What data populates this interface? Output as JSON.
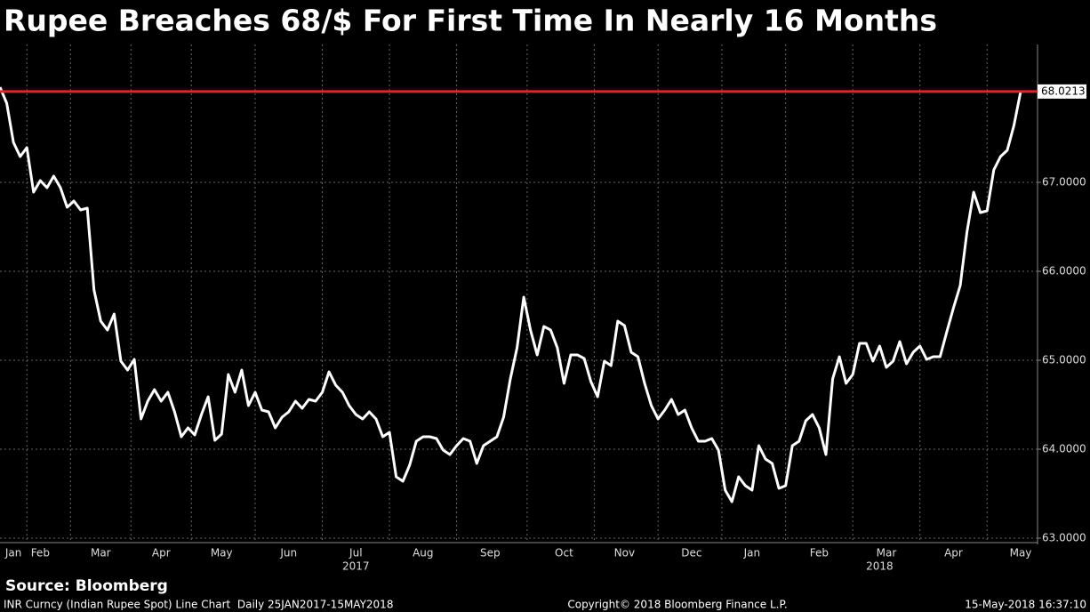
{
  "chart_data": {
    "type": "line",
    "title": "Rupee Breaches 68/$ For First Time In Nearly 16 Months",
    "source": "Source: Bloomberg",
    "footer_left": "INR Curncy (Indian Rupee Spot) Line Chart  Daily 25JAN2017-15MAY2018",
    "footer_center": "Copyright© 2018 Bloomberg Finance L.P.",
    "footer_right": "15-May-2018 16:37:10",
    "color": "#ffffff",
    "reference_line_color": "#e8202a",
    "grid": true,
    "ylim": [
      62.95,
      68.55
    ],
    "yticks": [
      {
        "value": 63,
        "label": "63.0000"
      },
      {
        "value": 64,
        "label": "64.0000"
      },
      {
        "value": 65,
        "label": "65.0000"
      },
      {
        "value": 66,
        "label": "66.0000"
      },
      {
        "value": 67,
        "label": "67.0000"
      }
    ],
    "categories": [
      null,
      null,
      "Jan",
      null,
      null,
      null,
      "Feb",
      null,
      null,
      null,
      null,
      null,
      null,
      null,
      null,
      "Mar",
      null,
      null,
      null,
      null,
      null,
      null,
      null,
      null,
      "Apr",
      null,
      null,
      null,
      null,
      null,
      null,
      null,
      null,
      "May",
      null,
      null,
      null,
      null,
      null,
      null,
      null,
      null,
      null,
      "Jun",
      null,
      null,
      null,
      null,
      null,
      null,
      null,
      null,
      null,
      "Jul",
      null,
      null,
      null,
      null,
      null,
      null,
      null,
      null,
      null,
      "Aug",
      null,
      null,
      null,
      null,
      null,
      null,
      null,
      null,
      null,
      "Sep",
      null,
      null,
      null,
      null,
      null,
      null,
      null,
      null,
      null,
      null,
      "Oct",
      null,
      null,
      null,
      null,
      null,
      null,
      null,
      null,
      "Nov",
      null,
      null,
      null,
      null,
      null,
      null,
      null,
      null,
      null,
      "Dec",
      null,
      null,
      null,
      null,
      null,
      null,
      null,
      null,
      "Jan",
      null,
      null,
      null,
      null,
      null,
      null,
      null,
      null,
      null,
      "Feb",
      null,
      null,
      null,
      null,
      null,
      null,
      null,
      null,
      null,
      "Mar",
      null,
      null,
      null,
      null,
      null,
      null,
      null,
      null,
      null,
      "Apr",
      null,
      null,
      null,
      null,
      null,
      null,
      null,
      null,
      null,
      "May"
    ],
    "year_labels": [
      null,
      null,
      null,
      null,
      null,
      null,
      null,
      null,
      null,
      null,
      null,
      null,
      null,
      null,
      null,
      null,
      null,
      null,
      null,
      null,
      null,
      null,
      null,
      null,
      null,
      null,
      null,
      null,
      null,
      null,
      null,
      null,
      null,
      null,
      null,
      null,
      null,
      null,
      null,
      null,
      null,
      null,
      null,
      null,
      null,
      null,
      null,
      null,
      null,
      null,
      null,
      null,
      null,
      "2017",
      null,
      null,
      null,
      null,
      null,
      null,
      null,
      null,
      null,
      null,
      null,
      null,
      null,
      null,
      null,
      null,
      null,
      null,
      null,
      null,
      null,
      null,
      null,
      null,
      null,
      null,
      null,
      null,
      null,
      null,
      null,
      null,
      null,
      null,
      null,
      null,
      null,
      null,
      null,
      null,
      null,
      null,
      null,
      null,
      null,
      null,
      null,
      null,
      null,
      null,
      null,
      null,
      null,
      null,
      null,
      null,
      null,
      null,
      null,
      null,
      null,
      null,
      null,
      null,
      null,
      null,
      null,
      null,
      null,
      null,
      null,
      null,
      null,
      null,
      null,
      null,
      null,
      "2018",
      null,
      null,
      null,
      null,
      null,
      null,
      null,
      null,
      null,
      null,
      null,
      null,
      null,
      null,
      null,
      null,
      null,
      null,
      null,
      null
    ],
    "values": [
      68.07,
      67.89,
      67.45,
      67.29,
      67.39,
      66.89,
      67.02,
      66.94,
      67.07,
      66.94,
      66.72,
      66.79,
      66.69,
      66.71,
      65.79,
      65.44,
      65.34,
      65.52,
      64.99,
      64.89,
      65.01,
      64.34,
      64.54,
      64.67,
      64.54,
      64.64,
      64.42,
      64.14,
      64.24,
      64.16,
      64.39,
      64.59,
      64.1,
      64.17,
      64.84,
      64.64,
      64.89,
      64.49,
      64.64,
      64.44,
      64.42,
      64.24,
      64.36,
      64.42,
      64.54,
      64.46,
      64.56,
      64.54,
      64.64,
      64.87,
      64.72,
      64.64,
      64.49,
      64.39,
      64.34,
      64.42,
      64.34,
      64.14,
      64.19,
      63.69,
      63.64,
      63.82,
      64.09,
      64.14,
      64.14,
      64.12,
      63.99,
      63.94,
      64.04,
      64.12,
      64.09,
      63.84,
      64.04,
      64.09,
      64.14,
      64.36,
      64.79,
      65.14,
      65.71,
      65.34,
      65.06,
      65.38,
      65.34,
      65.14,
      64.74,
      65.06,
      65.06,
      65.02,
      64.76,
      64.59,
      64.99,
      64.94,
      65.44,
      65.39,
      65.09,
      65.04,
      64.74,
      64.49,
      64.34,
      64.44,
      64.56,
      64.39,
      64.44,
      64.24,
      64.09,
      64.09,
      64.12,
      63.99,
      63.54,
      63.41,
      63.69,
      63.59,
      63.54,
      64.04,
      63.89,
      63.84,
      63.56,
      63.59,
      64.04,
      64.09,
      64.32,
      64.39,
      64.24,
      63.94,
      64.79,
      65.04,
      64.74,
      64.84,
      65.19,
      65.19,
      64.99,
      65.16,
      64.92,
      64.99,
      65.21,
      64.96,
      65.09,
      65.16,
      65.01,
      65.04,
      65.04,
      65.32,
      65.59,
      65.84,
      66.44,
      66.89,
      66.66,
      66.68,
      67.14,
      67.29,
      67.36,
      67.64,
      68.0213
    ]
  }
}
